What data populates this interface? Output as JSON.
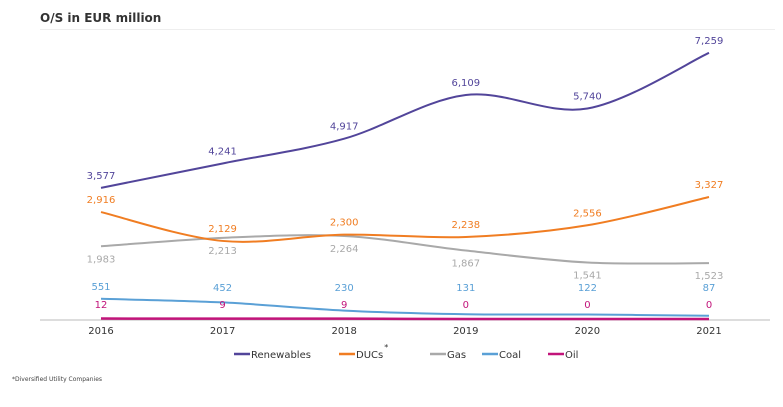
{
  "chart_data": {
    "type": "line",
    "title": "O/S in EUR million",
    "xlabel": "",
    "ylabel": "",
    "ylim": [
      0,
      7800
    ],
    "grid": false,
    "legend_position": "bottom",
    "categories": [
      "2016",
      "2017",
      "2018",
      "2019",
      "2020",
      "2021"
    ],
    "series": [
      {
        "name": "Renewables",
        "color": "#52459a",
        "label_pos": "above",
        "values": [
          3577,
          4241,
          4917,
          6109,
          5740,
          7259
        ],
        "labels": [
          "3,577",
          "4,241",
          "4,917",
          "6,109",
          "5,740",
          "7,259"
        ]
      },
      {
        "name": "DUCs",
        "sup": "*",
        "color": "#f07d22",
        "label_pos": "above",
        "values": [
          2916,
          2129,
          2300,
          2238,
          2556,
          3327
        ],
        "labels": [
          "2,916",
          "2,129",
          "2,300",
          "2,238",
          "2,556",
          "3,327"
        ]
      },
      {
        "name": "Gas",
        "color": "#a9a9a9",
        "label_pos": "below",
        "values": [
          1983,
          2213,
          2264,
          1867,
          1541,
          1523
        ],
        "labels": [
          "1,983",
          "2,213",
          "2,264",
          "1,867",
          "1,541",
          "1,523"
        ]
      },
      {
        "name": "Coal",
        "color": "#5aa0d6",
        "label_pos": "above",
        "values": [
          551,
          452,
          230,
          131,
          122,
          87
        ],
        "labels": [
          "551",
          "452",
          "230",
          "131",
          "122",
          "87"
        ]
      },
      {
        "name": "Oil",
        "color": "#c2147a",
        "label_pos": "above",
        "values": [
          12,
          9,
          9,
          0,
          0,
          0
        ],
        "labels": [
          "12",
          "9",
          "9",
          "0",
          "0",
          "0"
        ]
      }
    ],
    "footnote": "*Diversified Utility Companies"
  }
}
